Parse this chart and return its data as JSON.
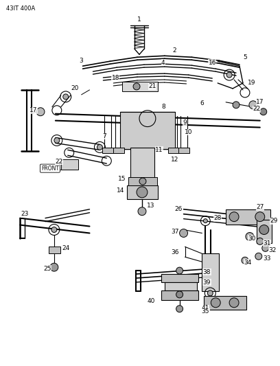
{
  "watermark": "43IT 400A",
  "bg_color": "#ffffff",
  "fig_width": 4.08,
  "fig_height": 5.33,
  "dpi": 100,
  "watermark_fontsize": 6,
  "label_fontsize": 6.5
}
